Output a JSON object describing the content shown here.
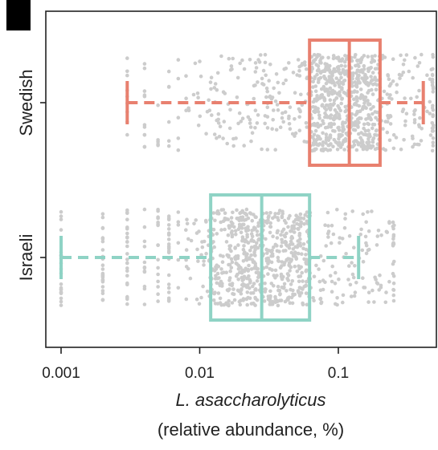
{
  "chart_data": {
    "type": "box",
    "orientation": "horizontal",
    "x_scale": "log",
    "xlim": [
      0.00095,
      0.5
    ],
    "x_ticks": [
      {
        "value": 0.001,
        "label": "0.001"
      },
      {
        "value": 0.01,
        "label": "0.01"
      },
      {
        "value": 0.1,
        "label": "0.1"
      }
    ],
    "xlabel_species": "L. asaccharolyticus",
    "xlabel_units": "(relative abundance, %)",
    "categories": [
      "Swedish",
      "Israeli"
    ],
    "series": [
      {
        "name": "Swedish",
        "color": "#e8806f",
        "whisker_low": 0.003,
        "q1": 0.062,
        "median": 0.12,
        "q3": 0.2,
        "whisker_high": 0.41,
        "n_points_approx": 900,
        "min_observed": 0.003,
        "max_observed": 0.48
      },
      {
        "name": "Israeli",
        "color": "#8fd3c5",
        "whisker_low": 0.001,
        "q1": 0.012,
        "median": 0.028,
        "q3": 0.062,
        "whisker_high": 0.14,
        "n_points_approx": 900,
        "min_observed": 0.001,
        "max_observed": 0.25
      }
    ],
    "point_color": "#cccccc",
    "grid": false,
    "legend": "none"
  }
}
